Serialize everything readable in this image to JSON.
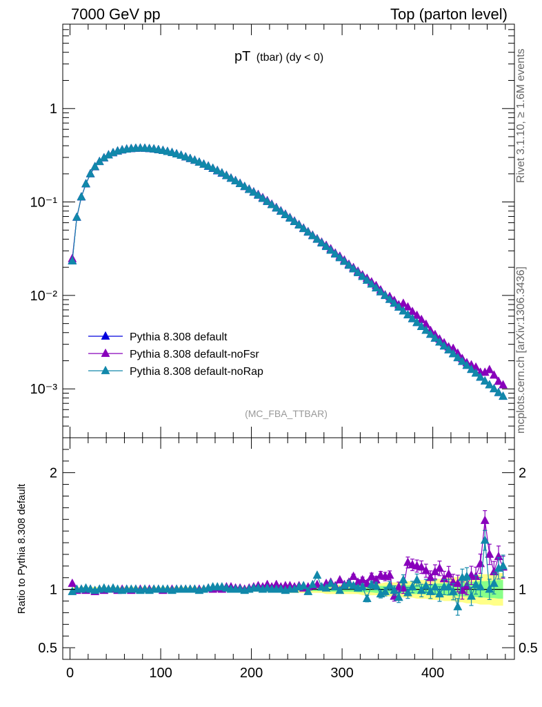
{
  "header": {
    "left": "7000 GeV pp",
    "right": "Top (parton level)"
  },
  "title": {
    "main": "pT",
    "sub": "(tbar) (dy < 0)"
  },
  "side_labels": {
    "rivet": "Rivet 3.1.10, ≥ 1.6M events",
    "mcplots": "mcplots.cern.ch [arXiv:1306.3436]"
  },
  "analysis_label": "(MC_FBA_TTBAR)",
  "ratio_ylabel": "Ratio to Pythia 8.308 default",
  "colors": {
    "default": "#0000dd",
    "noFsr": "#8800bb",
    "noRap": "#1188aa",
    "band_yellow": "#ffff88",
    "band_green": "#88ff88"
  },
  "chart_data": [
    {
      "type": "line",
      "scale": "log",
      "ylim": [
        0.0003,
        8
      ],
      "xlim": [
        -8,
        490
      ],
      "yticks": [
        {
          "v": 1,
          "label": "1"
        },
        {
          "v": 0.1,
          "label": "10⁻¹"
        },
        {
          "v": 0.01,
          "label": "10⁻²"
        },
        {
          "v": 0.001,
          "label": "10⁻³"
        }
      ],
      "legend_position": "bottom-left",
      "x": [
        2.5,
        7.5,
        12.5,
        17.5,
        22.5,
        27.5,
        32.5,
        37.5,
        42.5,
        47.5,
        52.5,
        57.5,
        62.5,
        67.5,
        72.5,
        77.5,
        82.5,
        87.5,
        92.5,
        97.5,
        102.5,
        107.5,
        112.5,
        117.5,
        122.5,
        127.5,
        132.5,
        137.5,
        142.5,
        147.5,
        152.5,
        157.5,
        162.5,
        167.5,
        172.5,
        177.5,
        182.5,
        187.5,
        192.5,
        197.5,
        202.5,
        207.5,
        212.5,
        217.5,
        222.5,
        227.5,
        232.5,
        237.5,
        242.5,
        247.5,
        252.5,
        257.5,
        262.5,
        267.5,
        272.5,
        277.5,
        282.5,
        287.5,
        292.5,
        297.5,
        302.5,
        307.5,
        312.5,
        317.5,
        322.5,
        327.5,
        332.5,
        337.5,
        342.5,
        347.5,
        352.5,
        357.5,
        362.5,
        367.5,
        372.5,
        377.5,
        382.5,
        387.5,
        392.5,
        397.5,
        402.5,
        407.5,
        412.5,
        417.5,
        422.5,
        427.5,
        432.5,
        437.5,
        442.5,
        447.5,
        452.5,
        457.5,
        462.5,
        467.5,
        472.5,
        477.5
      ],
      "series": [
        {
          "name": "Pythia 8.308 default",
          "color": "#0000dd",
          "values": [
            0.0235,
            0.0685,
            0.113,
            0.156,
            0.2,
            0.238,
            0.27,
            0.296,
            0.318,
            0.336,
            0.35,
            0.36,
            0.367,
            0.372,
            0.375,
            0.376,
            0.375,
            0.372,
            0.368,
            0.362,
            0.355,
            0.346,
            0.337,
            0.326,
            0.315,
            0.303,
            0.291,
            0.279,
            0.266,
            0.253,
            0.24,
            0.228,
            0.215,
            0.203,
            0.191,
            0.179,
            0.168,
            0.157,
            0.146,
            0.136,
            0.127,
            0.118,
            0.109,
            0.101,
            0.0933,
            0.086,
            0.0793,
            0.073,
            0.0671,
            0.0616,
            0.0565,
            0.0518,
            0.0475,
            0.0435,
            0.0398,
            0.0364,
            0.0333,
            0.0304,
            0.0277,
            0.0253,
            0.0231,
            0.021,
            0.0192,
            0.0175,
            0.0159,
            0.0145,
            0.0132,
            0.012,
            0.0109,
            0.00995,
            0.00905,
            0.00823,
            0.00748,
            0.0068,
            0.00618,
            0.00562,
            0.00511,
            0.00464,
            0.00422,
            0.00383,
            0.00348,
            0.00316,
            0.00287,
            0.00261,
            0.00237,
            0.00215,
            0.00196,
            0.00178,
            0.00161,
            0.00147,
            0.00133,
            0.00121,
            0.0011,
            0.001,
            0.00091,
            0.00083
          ]
        },
        {
          "name": "Pythia 8.308 default-noFsr",
          "color": "#8800bb",
          "values": [
            0.0247,
            0.0685,
            0.113,
            0.156,
            0.2,
            0.237,
            0.27,
            0.296,
            0.318,
            0.336,
            0.35,
            0.36,
            0.367,
            0.372,
            0.375,
            0.376,
            0.375,
            0.372,
            0.368,
            0.362,
            0.355,
            0.346,
            0.337,
            0.326,
            0.315,
            0.303,
            0.291,
            0.279,
            0.266,
            0.253,
            0.242,
            0.229,
            0.217,
            0.204,
            0.192,
            0.18,
            0.169,
            0.158,
            0.146,
            0.137,
            0.128,
            0.12,
            0.111,
            0.103,
            0.0944,
            0.087,
            0.0802,
            0.0739,
            0.0679,
            0.0623,
            0.0572,
            0.0524,
            0.048,
            0.044,
            0.0403,
            0.037,
            0.0342,
            0.0314,
            0.0283,
            0.0262,
            0.0238,
            0.0215,
            0.0198,
            0.0181,
            0.0165,
            0.0152,
            0.0139,
            0.0127,
            0.0114,
            0.0101,
            0.0097,
            0.0088,
            0.0079,
            0.0082,
            0.0075,
            0.0067,
            0.0061,
            0.0055,
            0.0049,
            0.0042,
            0.0038,
            0.0034,
            0.0031,
            0.0028,
            0.0027,
            0.0024,
            0.0021,
            0.0019,
            0.0018,
            0.0017,
            0.0015,
            0.0015,
            0.0016,
            0.0014,
            0.0012,
            0.0011
          ]
        },
        {
          "name": "Pythia 8.308 default-noRap",
          "color": "#1188aa",
          "values": [
            0.0233,
            0.0685,
            0.113,
            0.156,
            0.2,
            0.238,
            0.27,
            0.296,
            0.318,
            0.336,
            0.35,
            0.36,
            0.367,
            0.372,
            0.375,
            0.376,
            0.375,
            0.372,
            0.368,
            0.362,
            0.355,
            0.346,
            0.337,
            0.326,
            0.315,
            0.303,
            0.291,
            0.279,
            0.266,
            0.253,
            0.241,
            0.229,
            0.216,
            0.204,
            0.191,
            0.179,
            0.168,
            0.157,
            0.146,
            0.136,
            0.127,
            0.118,
            0.109,
            0.101,
            0.0933,
            0.086,
            0.0793,
            0.073,
            0.0671,
            0.0616,
            0.0565,
            0.0518,
            0.0475,
            0.0435,
            0.0398,
            0.0364,
            0.0333,
            0.0304,
            0.0277,
            0.0253,
            0.0231,
            0.021,
            0.0192,
            0.0175,
            0.0159,
            0.0145,
            0.0132,
            0.012,
            0.0109,
            0.00995,
            0.00905,
            0.00823,
            0.00748,
            0.0068,
            0.00618,
            0.00562,
            0.00511,
            0.00464,
            0.00422,
            0.00383,
            0.00348,
            0.00316,
            0.00287,
            0.00261,
            0.00237,
            0.00215,
            0.00196,
            0.00178,
            0.00161,
            0.00147,
            0.00133,
            0.00121,
            0.0011,
            0.001,
            0.00091,
            0.00083
          ]
        }
      ]
    },
    {
      "type": "line",
      "ylim": [
        0.4,
        2.3
      ],
      "xlim": [
        -8,
        490
      ],
      "ylabel": "Ratio to Pythia 8.308 default",
      "yticks": [
        {
          "v": 2,
          "label": "2"
        },
        {
          "v": 1,
          "label": "1"
        },
        {
          "v": 0.5,
          "label": "0.5"
        }
      ],
      "xticks": [
        {
          "v": 0,
          "label": "0"
        },
        {
          "v": 100,
          "label": "100"
        },
        {
          "v": 200,
          "label": "200"
        },
        {
          "v": 300,
          "label": "300"
        },
        {
          "v": 400,
          "label": "400"
        }
      ],
      "band_yellow_halfwidth": [
        0.02,
        0.02,
        0.02,
        0.02,
        0.02,
        0.02,
        0.02,
        0.02,
        0.02,
        0.02,
        0.02,
        0.02,
        0.02,
        0.02,
        0.02,
        0.02,
        0.02,
        0.02,
        0.02,
        0.02,
        0.02,
        0.02,
        0.02,
        0.02,
        0.02,
        0.02,
        0.02,
        0.02,
        0.02,
        0.02,
        0.02,
        0.02,
        0.02,
        0.02,
        0.02,
        0.02,
        0.02,
        0.02,
        0.02,
        0.02,
        0.02,
        0.02,
        0.02,
        0.02,
        0.02,
        0.02,
        0.02,
        0.03,
        0.03,
        0.03,
        0.03,
        0.03,
        0.03,
        0.03,
        0.03,
        0.03,
        0.04,
        0.04,
        0.04,
        0.04,
        0.04,
        0.04,
        0.04,
        0.04,
        0.05,
        0.05,
        0.05,
        0.05,
        0.05,
        0.06,
        0.06,
        0.06,
        0.06,
        0.07,
        0.07,
        0.07,
        0.08,
        0.08,
        0.08,
        0.09,
        0.09,
        0.09,
        0.1,
        0.1,
        0.1,
        0.11,
        0.11,
        0.12,
        0.12,
        0.12,
        0.13,
        0.13,
        0.13,
        0.14,
        0.14,
        0.14
      ],
      "band_green_halfwidth": [
        0.01,
        0.01,
        0.01,
        0.01,
        0.01,
        0.01,
        0.01,
        0.01,
        0.01,
        0.01,
        0.01,
        0.01,
        0.01,
        0.01,
        0.01,
        0.01,
        0.01,
        0.01,
        0.01,
        0.01,
        0.01,
        0.01,
        0.01,
        0.01,
        0.01,
        0.01,
        0.01,
        0.01,
        0.01,
        0.01,
        0.01,
        0.01,
        0.01,
        0.01,
        0.01,
        0.01,
        0.01,
        0.01,
        0.01,
        0.01,
        0.01,
        0.01,
        0.01,
        0.01,
        0.01,
        0.01,
        0.01,
        0.01,
        0.01,
        0.01,
        0.01,
        0.01,
        0.015,
        0.015,
        0.015,
        0.015,
        0.015,
        0.02,
        0.02,
        0.02,
        0.02,
        0.02,
        0.02,
        0.025,
        0.025,
        0.025,
        0.025,
        0.03,
        0.03,
        0.03,
        0.03,
        0.03,
        0.035,
        0.035,
        0.035,
        0.04,
        0.04,
        0.04,
        0.045,
        0.045,
        0.05,
        0.05,
        0.05,
        0.055,
        0.055,
        0.06,
        0.06,
        0.06,
        0.065,
        0.065,
        0.07,
        0.07,
        0.075,
        0.075,
        0.08,
        0.08
      ],
      "series": [
        {
          "name": "Pythia 8.308 default",
          "color": "#0000dd",
          "values": [
            1,
            1,
            1,
            1,
            1,
            1,
            1,
            1,
            1,
            1,
            1,
            1,
            1,
            1,
            1,
            1,
            1,
            1,
            1,
            1,
            1,
            1,
            1,
            1,
            1,
            1,
            1,
            1,
            1,
            1,
            1,
            1,
            1,
            1,
            1,
            1,
            1,
            1,
            1,
            1,
            1,
            1,
            1,
            1,
            1,
            1,
            1,
            1,
            1,
            1,
            1,
            1,
            1,
            1,
            1,
            1,
            1,
            1,
            1,
            1,
            1,
            1,
            1,
            1,
            1,
            1,
            1,
            1,
            1,
            1,
            1,
            1,
            1,
            1,
            1,
            1,
            1,
            1,
            1,
            1,
            1,
            1,
            1,
            1,
            1,
            1,
            1,
            1,
            1,
            1,
            1,
            1,
            1,
            1,
            1,
            1
          ]
        },
        {
          "name": "Pythia 8.308 default-noFsr",
          "color": "#8800bb",
          "values": [
            1.05,
            0.99,
            1,
            0.99,
            1,
            0.98,
            1,
            0.99,
            1,
            1,
            0.99,
            1,
            1,
            0.99,
            1,
            1,
            1,
            1,
            1,
            1,
            0.99,
            1,
            1,
            1,
            1,
            1,
            1,
            1,
            1,
            1,
            1.01,
            1,
            1.01,
            1,
            1.02,
            1.02,
            1.01,
            1.01,
            1,
            1.01,
            1.02,
            1.03,
            1.02,
            1.04,
            1.02,
            1.04,
            1.02,
            1.03,
            1.03,
            1.02,
            1.03,
            1.01,
            1.02,
            1.03,
            1.04,
            1.02,
            1.05,
            1.06,
            1.03,
            1.08,
            1.04,
            1.06,
            1.11,
            1.06,
            1.08,
            1.05,
            1.11,
            1.08,
            1.12,
            1.11,
            1.12,
            0.94,
            1.02,
            1.01,
            1.23,
            1.21,
            1.2,
            1.19,
            1.16,
            1.1,
            1.15,
            1.18,
            1.09,
            1.13,
            1.06,
            1.05,
            0.99,
            1.03,
            1.12,
            1.11,
            1.22,
            1.59,
            1.3,
            1.15,
            1.28,
            1.19
          ]
        },
        {
          "name": "Pythia 8.308 default-noRap",
          "color": "#1188aa",
          "values": [
            0.98,
            1,
            1,
            1.01,
            1,
            0.99,
            1,
            1.01,
            1,
            1.01,
            1,
            0.99,
            1,
            1,
            1,
            0.99,
            1,
            0.99,
            1,
            1,
            1,
            1,
            0.99,
            1,
            1,
            1,
            1,
            1,
            0.99,
            1,
            1.01,
            1.02,
            1.02,
            1.02,
            1.01,
            1,
            1,
            1,
            0.99,
            1,
            1.01,
            1.01,
            1,
            1.01,
            1,
            1,
            1,
            0.99,
            1,
            1,
            1.02,
            1.03,
            0.98,
            1.04,
            1.12,
            1.02,
            1.01,
            1.05,
            1.02,
            0.99,
            1.03,
            1.05,
            1.03,
            1.01,
            1.02,
            0.92,
            1.04,
            1.03,
            0.96,
            0.98,
            1.03,
            0.99,
            0.93,
            1.08,
            0.97,
            1.02,
            1.08,
            0.99,
            1.03,
            0.98,
            1.02,
            0.96,
            1.02,
            1.02,
            0.98,
            0.85,
            1.1,
            1.11,
            0.94,
            1.04,
            1.02,
            1.42,
            1.0,
            1.05,
            1.18,
            1.2
          ]
        }
      ]
    }
  ]
}
